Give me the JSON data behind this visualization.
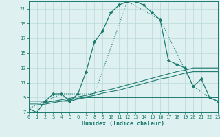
{
  "xlabel": "Humidex (Indice chaleur)",
  "background_color": "#dff0f0",
  "grid_color": "#b8d8d8",
  "line_color": "#1a7a6e",
  "x_min": 0,
  "x_max": 23,
  "y_min": 7,
  "y_max": 22,
  "x_ticks": [
    0,
    1,
    2,
    3,
    4,
    5,
    6,
    7,
    8,
    9,
    10,
    11,
    12,
    13,
    14,
    15,
    16,
    17,
    18,
    19,
    20,
    21,
    22,
    23
  ],
  "y_ticks": [
    7,
    9,
    11,
    13,
    15,
    17,
    19,
    21
  ],
  "series1_x": [
    0,
    1,
    2,
    3,
    4,
    5,
    6,
    7,
    8,
    9,
    10,
    11,
    12,
    13,
    14,
    15,
    16,
    17,
    18,
    19,
    20,
    21,
    22,
    23
  ],
  "series1_y": [
    7.5,
    7.0,
    8.5,
    9.5,
    9.5,
    8.5,
    9.5,
    12.5,
    16.5,
    18.0,
    20.5,
    21.5,
    22.0,
    22.0,
    21.5,
    20.5,
    19.5,
    14.0,
    13.5,
    13.0,
    10.5,
    11.5,
    9.0,
    8.5
  ],
  "series2_x": [
    0,
    4,
    8,
    12,
    16,
    20,
    22,
    23
  ],
  "series2_y": [
    7.5,
    9.5,
    9.5,
    22.0,
    19.5,
    10.5,
    9.0,
    8.5
  ],
  "series3_x": [
    0,
    1,
    2,
    3,
    4,
    5,
    6,
    7,
    8,
    9,
    10,
    11,
    12,
    13,
    14,
    15,
    16,
    17,
    18,
    19,
    20,
    21,
    22,
    23
  ],
  "series3_y": [
    8.5,
    8.5,
    8.5,
    8.5,
    8.5,
    8.5,
    8.8,
    9.0,
    9.0,
    9.0,
    9.0,
    9.0,
    9.0,
    9.0,
    9.0,
    9.0,
    9.0,
    9.0,
    9.0,
    9.0,
    9.0,
    9.0,
    9.0,
    9.0
  ],
  "series4_x": [
    0,
    1,
    2,
    3,
    4,
    5,
    6,
    7,
    8,
    9,
    10,
    11,
    12,
    13,
    14,
    15,
    16,
    17,
    18,
    19,
    20,
    21,
    22,
    23
  ],
  "series4_y": [
    8.2,
    8.2,
    8.3,
    8.5,
    8.7,
    8.9,
    9.1,
    9.3,
    9.6,
    9.9,
    10.1,
    10.4,
    10.7,
    11.0,
    11.3,
    11.6,
    11.9,
    12.2,
    12.5,
    12.7,
    13.0,
    13.0,
    13.0,
    13.0
  ],
  "series5_x": [
    0,
    1,
    2,
    3,
    4,
    5,
    6,
    7,
    8,
    9,
    10,
    11,
    12,
    13,
    14,
    15,
    16,
    17,
    18,
    19,
    20,
    21,
    22,
    23
  ],
  "series5_y": [
    8.0,
    8.0,
    8.1,
    8.3,
    8.5,
    8.7,
    8.9,
    9.1,
    9.3,
    9.6,
    9.8,
    10.0,
    10.3,
    10.6,
    10.9,
    11.2,
    11.5,
    11.7,
    12.0,
    12.3,
    12.5,
    12.5,
    12.5,
    12.5
  ]
}
